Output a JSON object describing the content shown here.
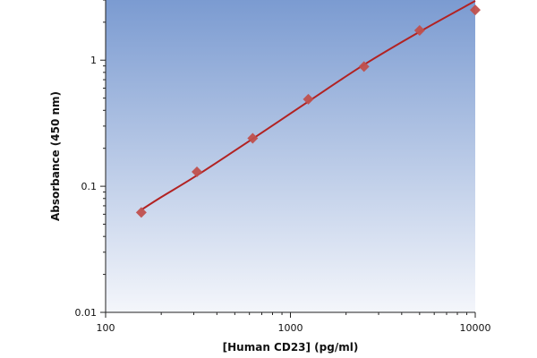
{
  "chart_data": {
    "type": "scatter",
    "title": "",
    "xlabel": "[Human CD23]  (pg/ml)",
    "ylabel": "Absorbance (450 nm)",
    "x_scale": "log",
    "y_scale": "log",
    "xlim": [
      100,
      10000
    ],
    "ylim": [
      0.01,
      3
    ],
    "x_ticks": [
      {
        "value": 100,
        "label": "100"
      },
      {
        "value": 1000,
        "label": "1000"
      },
      {
        "value": 10000,
        "label": "10000"
      }
    ],
    "y_ticks": [
      {
        "value": 0.01,
        "label": "0.01"
      },
      {
        "value": 0.1,
        "label": "0.1"
      },
      {
        "value": 1,
        "label": "1"
      }
    ],
    "grid": false,
    "legend": "none",
    "series": [
      {
        "kind": "points",
        "marker": "diamond",
        "color": "#c0504d",
        "points": [
          {
            "x": 156,
            "y": 0.062
          },
          {
            "x": 312,
            "y": 0.13
          },
          {
            "x": 625,
            "y": 0.24
          },
          {
            "x": 1250,
            "y": 0.49
          },
          {
            "x": 2500,
            "y": 0.89
          },
          {
            "x": 5000,
            "y": 1.72
          },
          {
            "x": 10000,
            "y": 2.5
          }
        ]
      },
      {
        "kind": "fit-line",
        "color": "#b22222",
        "points": [
          {
            "x": 156,
            "y": 0.065
          },
          {
            "x": 200,
            "y": 0.082
          },
          {
            "x": 312,
            "y": 0.122
          },
          {
            "x": 625,
            "y": 0.238
          },
          {
            "x": 1250,
            "y": 0.47
          },
          {
            "x": 2500,
            "y": 0.92
          },
          {
            "x": 5000,
            "y": 1.68
          },
          {
            "x": 10000,
            "y": 2.95
          }
        ]
      }
    ],
    "colors": {
      "plot_bg_top": "#7b9bd1",
      "plot_bg_bottom": "#f4f6fb",
      "axis": "#222222"
    }
  }
}
